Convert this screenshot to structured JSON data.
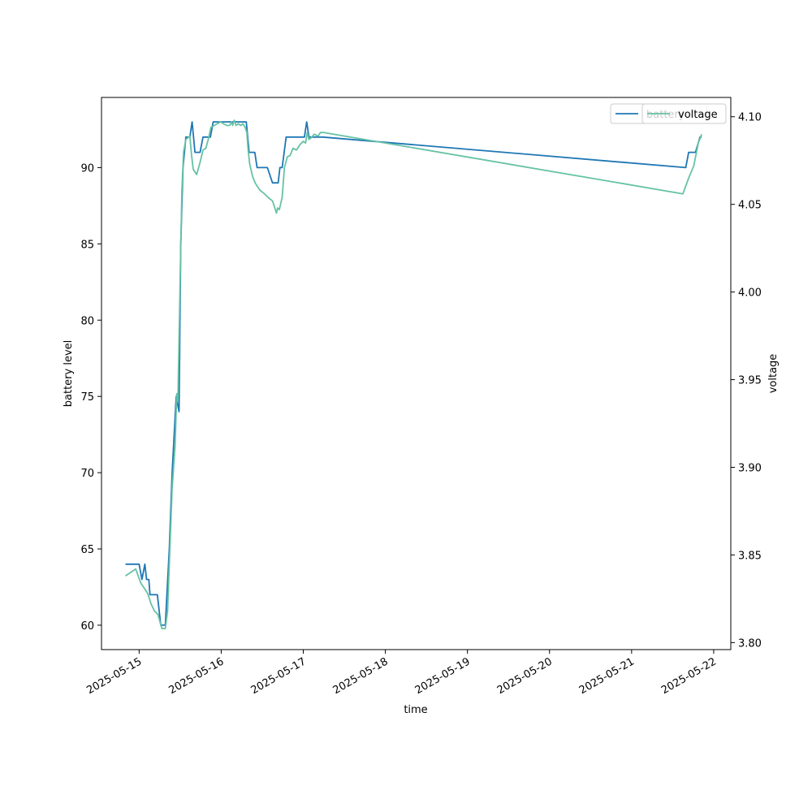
{
  "chart_data": {
    "type": "line",
    "xlabel": "time",
    "ylabel_left": "battery level",
    "ylabel_right": "voltage",
    "x_ticks": [
      "2025-05-15",
      "2025-05-16",
      "2025-05-17",
      "2025-05-18",
      "2025-05-19",
      "2025-05-20",
      "2025-05-21",
      "2025-05-22"
    ],
    "y_left_ticks": [
      "60",
      "65",
      "70",
      "75",
      "80",
      "85",
      "90"
    ],
    "y_right_ticks": [
      "3.80",
      "3.85",
      "3.90",
      "3.95",
      "4.00",
      "4.05",
      "4.10"
    ],
    "xlim": [
      "2025-05-14 13:00",
      "2025-05-22 05:00"
    ],
    "ylim_left": [
      58.4,
      94.6
    ],
    "ylim_right": [
      3.796,
      4.111
    ],
    "grid": false,
    "legends": [
      {
        "entries": [
          "battery"
        ],
        "position": "upper right"
      },
      {
        "entries": [
          "voltage"
        ],
        "position": "upper right"
      }
    ],
    "series": [
      {
        "name": "battery",
        "axis": "left",
        "color": "#1f77b4",
        "points": [
          [
            "2025-05-14 20:00",
            64
          ],
          [
            "2025-05-15 00:00",
            64
          ],
          [
            "2025-05-15 00:50",
            63
          ],
          [
            "2025-05-15 01:40",
            64
          ],
          [
            "2025-05-15 02:10",
            63
          ],
          [
            "2025-05-15 02:50",
            63
          ],
          [
            "2025-05-15 03:10",
            62
          ],
          [
            "2025-05-15 05:20",
            62
          ],
          [
            "2025-05-15 06:20",
            60
          ],
          [
            "2025-05-15 07:40",
            60
          ],
          [
            "2025-05-15 08:50",
            65
          ],
          [
            "2025-05-15 09:40",
            70
          ],
          [
            "2025-05-15 10:50",
            75
          ],
          [
            "2025-05-15 11:40",
            74
          ],
          [
            "2025-05-15 12:10",
            85
          ],
          [
            "2025-05-15 12:50",
            90
          ],
          [
            "2025-05-15 13:40",
            92
          ],
          [
            "2025-05-15 14:50",
            92
          ],
          [
            "2025-05-15 15:30",
            93
          ],
          [
            "2025-05-15 16:20",
            91
          ],
          [
            "2025-05-15 17:50",
            91
          ],
          [
            "2025-05-15 18:40",
            92
          ],
          [
            "2025-05-15 20:50",
            92
          ],
          [
            "2025-05-15 21:40",
            93
          ],
          [
            "2025-05-16 07:20",
            93
          ],
          [
            "2025-05-16 08:10",
            91
          ],
          [
            "2025-05-16 09:50",
            91
          ],
          [
            "2025-05-16 10:30",
            90
          ],
          [
            "2025-05-16 13:30",
            90
          ],
          [
            "2025-05-16 15:00",
            89
          ],
          [
            "2025-05-16 16:40",
            89
          ],
          [
            "2025-05-16 17:10",
            90
          ],
          [
            "2025-05-16 17:50",
            90
          ],
          [
            "2025-05-16 19:00",
            92
          ],
          [
            "2025-05-17 00:20",
            92
          ],
          [
            "2025-05-17 01:00",
            93
          ],
          [
            "2025-05-17 01:40",
            92
          ],
          [
            "2025-05-17 05:40",
            92
          ],
          [
            "2025-05-21 15:50",
            90
          ],
          [
            "2025-05-21 16:40",
            91
          ],
          [
            "2025-05-21 18:40",
            91
          ],
          [
            "2025-05-21 20:00",
            92
          ],
          [
            "2025-05-21 20:30",
            92
          ]
        ]
      },
      {
        "name": "voltage",
        "axis": "right",
        "color": "#66c2a5",
        "points": [
          [
            "2025-05-14 20:00",
            3.838
          ],
          [
            "2025-05-14 23:00",
            3.842
          ],
          [
            "2025-05-15 00:30",
            3.834
          ],
          [
            "2025-05-15 01:10",
            3.832
          ],
          [
            "2025-05-15 02:30",
            3.828
          ],
          [
            "2025-05-15 03:30",
            3.822
          ],
          [
            "2025-05-15 04:30",
            3.818
          ],
          [
            "2025-05-15 05:30",
            3.816
          ],
          [
            "2025-05-15 06:40",
            3.808
          ],
          [
            "2025-05-15 07:40",
            3.808
          ],
          [
            "2025-05-15 08:20",
            3.818
          ],
          [
            "2025-05-15 09:40",
            3.888
          ],
          [
            "2025-05-15 10:30",
            3.912
          ],
          [
            "2025-05-15 11:00",
            3.942
          ],
          [
            "2025-05-15 11:20",
            3.938
          ],
          [
            "2025-05-15 12:00",
            4.008
          ],
          [
            "2025-05-15 12:30",
            4.058
          ],
          [
            "2025-05-15 13:00",
            4.08
          ],
          [
            "2025-05-15 13:40",
            4.087
          ],
          [
            "2025-05-15 14:50",
            4.089
          ],
          [
            "2025-05-15 15:20",
            4.078
          ],
          [
            "2025-05-15 15:50",
            4.07
          ],
          [
            "2025-05-15 16:50",
            4.067
          ],
          [
            "2025-05-15 17:50",
            4.074
          ],
          [
            "2025-05-15 18:40",
            4.081
          ],
          [
            "2025-05-15 19:30",
            4.082
          ],
          [
            "2025-05-15 20:20",
            4.088
          ],
          [
            "2025-05-15 21:00",
            4.094
          ],
          [
            "2025-05-15 22:00",
            4.095
          ],
          [
            "2025-05-15 22:50",
            4.096
          ],
          [
            "2025-05-15 23:50",
            4.097
          ],
          [
            "2025-05-16 00:40",
            4.096
          ],
          [
            "2025-05-16 01:40",
            4.095
          ],
          [
            "2025-05-16 02:30",
            4.095
          ],
          [
            "2025-05-16 03:00",
            4.097
          ],
          [
            "2025-05-16 03:20",
            4.095
          ],
          [
            "2025-05-16 03:50",
            4.098
          ],
          [
            "2025-05-16 04:20",
            4.095
          ],
          [
            "2025-05-16 05:00",
            4.096
          ],
          [
            "2025-05-16 05:40",
            4.095
          ],
          [
            "2025-05-16 06:20",
            4.096
          ],
          [
            "2025-05-16 07:00",
            4.094
          ],
          [
            "2025-05-16 07:30",
            4.091
          ],
          [
            "2025-05-16 07:50",
            4.082
          ],
          [
            "2025-05-16 08:20",
            4.073
          ],
          [
            "2025-05-16 09:10",
            4.066
          ],
          [
            "2025-05-16 10:00",
            4.062
          ],
          [
            "2025-05-16 11:20",
            4.058
          ],
          [
            "2025-05-16 12:40",
            4.056
          ],
          [
            "2025-05-16 13:40",
            4.054
          ],
          [
            "2025-05-16 15:00",
            4.052
          ],
          [
            "2025-05-16 15:40",
            4.048
          ],
          [
            "2025-05-16 16:10",
            4.045
          ],
          [
            "2025-05-16 16:30",
            4.048
          ],
          [
            "2025-05-16 17:00",
            4.047
          ],
          [
            "2025-05-16 17:50",
            4.054
          ],
          [
            "2025-05-16 18:30",
            4.071
          ],
          [
            "2025-05-16 19:20",
            4.077
          ],
          [
            "2025-05-16 20:10",
            4.078
          ],
          [
            "2025-05-16 21:00",
            4.082
          ],
          [
            "2025-05-16 22:00",
            4.081
          ],
          [
            "2025-05-16 23:00",
            4.084
          ],
          [
            "2025-05-17 00:00",
            4.086
          ],
          [
            "2025-05-17 00:40",
            4.085
          ],
          [
            "2025-05-17 01:10",
            4.091
          ],
          [
            "2025-05-17 01:40",
            4.087
          ],
          [
            "2025-05-17 02:20",
            4.088
          ],
          [
            "2025-05-17 03:10",
            4.09
          ],
          [
            "2025-05-17 04:20",
            4.089
          ],
          [
            "2025-05-17 05:00",
            4.091
          ],
          [
            "2025-05-17 06:00",
            4.091
          ],
          [
            "2025-05-21 15:00",
            4.056
          ],
          [
            "2025-05-21 16:40",
            4.065
          ],
          [
            "2025-05-21 18:10",
            4.072
          ],
          [
            "2025-05-21 19:30",
            4.085
          ],
          [
            "2025-05-21 20:30",
            4.09
          ]
        ]
      }
    ]
  }
}
